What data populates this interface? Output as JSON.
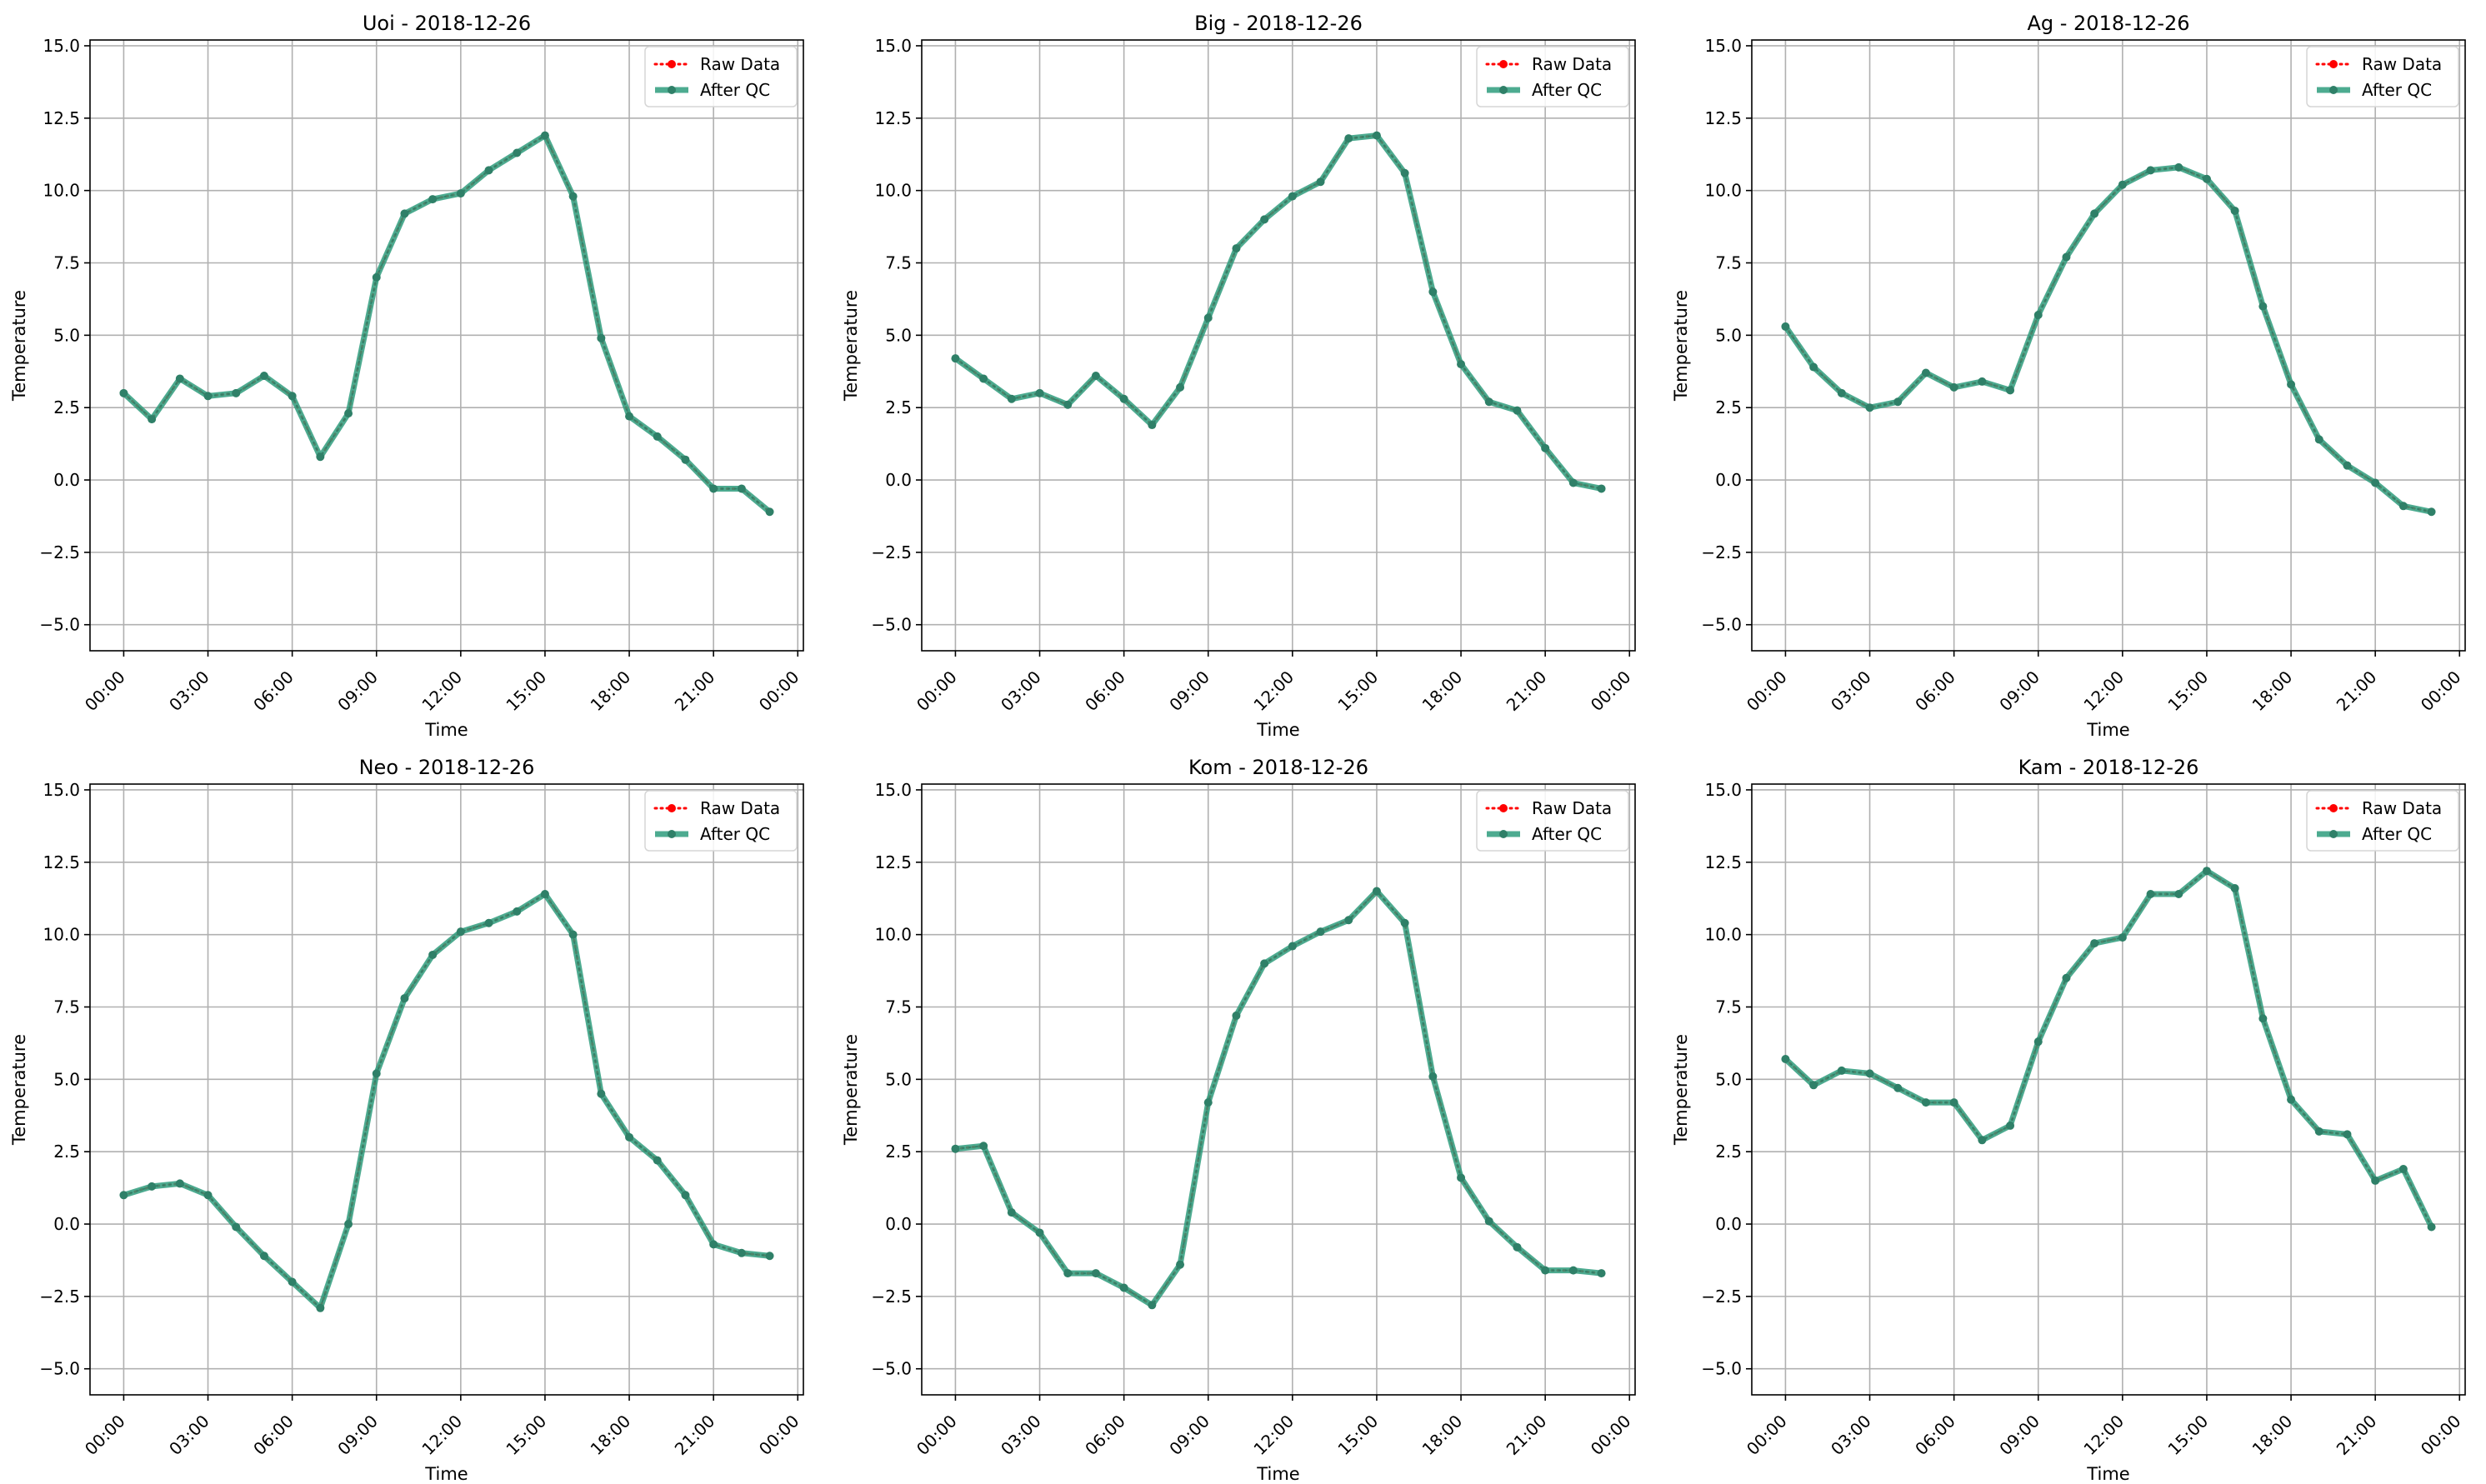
{
  "colors": {
    "raw": "#ff0000",
    "qc": "#2e9c7c",
    "qc_marker": "#2f8068",
    "grid": "#b0b0b0",
    "axes": "#000000"
  },
  "chart_data": [
    {
      "type": "line",
      "title": "Uoi - 2018-12-26",
      "xlabel": "Time",
      "ylabel": "Temperature",
      "x_ticks": [
        "00:00",
        "03:00",
        "06:00",
        "09:00",
        "12:00",
        "15:00",
        "18:00",
        "21:00",
        "00:00"
      ],
      "y_ticks": [
        "−5.0",
        "−2.5",
        "0.0",
        "2.5",
        "5.0",
        "7.5",
        "10.0",
        "12.5",
        "15.0"
      ],
      "ylim": [
        -5.9,
        15.2
      ],
      "xlim_hours": [
        -1.2,
        24.2
      ],
      "hours": [
        0,
        1,
        2,
        3,
        4,
        5,
        6,
        7,
        8,
        9,
        10,
        11,
        12,
        13,
        14,
        15,
        16,
        17,
        18,
        19,
        20,
        21,
        22,
        23
      ],
      "legend": [
        "Raw Data",
        "After QC"
      ],
      "legend_position": "upper right",
      "grid": true,
      "series": [
        {
          "name": "Raw Data",
          "values": [
            3.0,
            2.1,
            3.5,
            2.9,
            3.0,
            3.6,
            2.9,
            0.8,
            2.3,
            7.0,
            9.2,
            9.7,
            9.9,
            10.7,
            11.3,
            11.9,
            9.8,
            4.9,
            2.2,
            1.5,
            0.7,
            -0.3,
            -0.3,
            -1.1
          ]
        },
        {
          "name": "After QC",
          "values": [
            3.0,
            2.1,
            3.5,
            2.9,
            3.0,
            3.6,
            2.9,
            0.8,
            2.3,
            7.0,
            9.2,
            9.7,
            9.9,
            10.7,
            11.3,
            11.9,
            9.8,
            4.9,
            2.2,
            1.5,
            0.7,
            -0.3,
            -0.3,
            -1.1
          ]
        }
      ]
    },
    {
      "type": "line",
      "title": "Big - 2018-12-26",
      "xlabel": "Time",
      "ylabel": "Temperature",
      "x_ticks": [
        "00:00",
        "03:00",
        "06:00",
        "09:00",
        "12:00",
        "15:00",
        "18:00",
        "21:00",
        "00:00"
      ],
      "y_ticks": [
        "−5.0",
        "−2.5",
        "0.0",
        "2.5",
        "5.0",
        "7.5",
        "10.0",
        "12.5",
        "15.0"
      ],
      "ylim": [
        -5.9,
        15.2
      ],
      "xlim_hours": [
        -1.2,
        24.2
      ],
      "hours": [
        0,
        1,
        2,
        3,
        4,
        5,
        6,
        7,
        8,
        9,
        10,
        11,
        12,
        13,
        14,
        15,
        16,
        17,
        18,
        19,
        20,
        21,
        22,
        23
      ],
      "legend": [
        "Raw Data",
        "After QC"
      ],
      "legend_position": "upper right",
      "grid": true,
      "series": [
        {
          "name": "Raw Data",
          "values": [
            4.2,
            3.5,
            2.8,
            3.0,
            2.6,
            3.6,
            2.8,
            1.9,
            3.2,
            5.6,
            8.0,
            9.0,
            9.8,
            10.3,
            11.8,
            11.9,
            10.6,
            6.5,
            4.0,
            2.7,
            2.4,
            1.1,
            -0.1,
            -0.3
          ]
        },
        {
          "name": "After QC",
          "values": [
            4.2,
            3.5,
            2.8,
            3.0,
            2.6,
            3.6,
            2.8,
            1.9,
            3.2,
            5.6,
            8.0,
            9.0,
            9.8,
            10.3,
            11.8,
            11.9,
            10.6,
            6.5,
            4.0,
            2.7,
            2.4,
            1.1,
            -0.1,
            -0.3
          ]
        }
      ]
    },
    {
      "type": "line",
      "title": "Ag - 2018-12-26",
      "xlabel": "Time",
      "ylabel": "Temperature",
      "x_ticks": [
        "00:00",
        "03:00",
        "06:00",
        "09:00",
        "12:00",
        "15:00",
        "18:00",
        "21:00",
        "00:00"
      ],
      "y_ticks": [
        "−5.0",
        "−2.5",
        "0.0",
        "2.5",
        "5.0",
        "7.5",
        "10.0",
        "12.5",
        "15.0"
      ],
      "ylim": [
        -5.9,
        15.2
      ],
      "xlim_hours": [
        -1.2,
        24.2
      ],
      "hours": [
        0,
        1,
        2,
        3,
        4,
        5,
        6,
        7,
        8,
        9,
        10,
        11,
        12,
        13,
        14,
        15,
        16,
        17,
        18,
        19,
        20,
        21,
        22,
        23
      ],
      "legend": [
        "Raw Data",
        "After QC"
      ],
      "legend_position": "upper right",
      "grid": true,
      "series": [
        {
          "name": "Raw Data",
          "values": [
            5.3,
            3.9,
            3.0,
            2.5,
            2.7,
            3.7,
            3.2,
            3.4,
            3.1,
            5.7,
            7.7,
            9.2,
            10.2,
            10.7,
            10.8,
            10.4,
            9.3,
            6.0,
            3.3,
            1.4,
            0.5,
            -0.1,
            -0.9,
            -1.1
          ]
        },
        {
          "name": "After QC",
          "values": [
            5.3,
            3.9,
            3.0,
            2.5,
            2.7,
            3.7,
            3.2,
            3.4,
            3.1,
            5.7,
            7.7,
            9.2,
            10.2,
            10.7,
            10.8,
            10.4,
            9.3,
            6.0,
            3.3,
            1.4,
            0.5,
            -0.1,
            -0.9,
            -1.1
          ]
        }
      ]
    },
    {
      "type": "line",
      "title": "Neo - 2018-12-26",
      "xlabel": "Time",
      "ylabel": "Temperature",
      "x_ticks": [
        "00:00",
        "03:00",
        "06:00",
        "09:00",
        "12:00",
        "15:00",
        "18:00",
        "21:00",
        "00:00"
      ],
      "y_ticks": [
        "−5.0",
        "−2.5",
        "0.0",
        "2.5",
        "5.0",
        "7.5",
        "10.0",
        "12.5",
        "15.0"
      ],
      "ylim": [
        -5.9,
        15.2
      ],
      "xlim_hours": [
        -1.2,
        24.2
      ],
      "hours": [
        0,
        1,
        2,
        3,
        4,
        5,
        6,
        7,
        8,
        9,
        10,
        11,
        12,
        13,
        14,
        15,
        16,
        17,
        18,
        19,
        20,
        21,
        22,
        23
      ],
      "legend": [
        "Raw Data",
        "After QC"
      ],
      "legend_position": "upper right",
      "grid": true,
      "series": [
        {
          "name": "Raw Data",
          "values": [
            1.0,
            1.3,
            1.4,
            1.0,
            -0.1,
            -1.1,
            -2.0,
            -2.9,
            0.0,
            5.2,
            7.8,
            9.3,
            10.1,
            10.4,
            10.8,
            11.4,
            10.0,
            4.5,
            3.0,
            2.2,
            1.0,
            -0.7,
            -1.0,
            -1.1
          ]
        },
        {
          "name": "After QC",
          "values": [
            1.0,
            1.3,
            1.4,
            1.0,
            -0.1,
            -1.1,
            -2.0,
            -2.9,
            0.0,
            5.2,
            7.8,
            9.3,
            10.1,
            10.4,
            10.8,
            11.4,
            10.0,
            4.5,
            3.0,
            2.2,
            1.0,
            -0.7,
            -1.0,
            -1.1
          ]
        }
      ]
    },
    {
      "type": "line",
      "title": "Kom - 2018-12-26",
      "xlabel": "Time",
      "ylabel": "Temperature",
      "x_ticks": [
        "00:00",
        "03:00",
        "06:00",
        "09:00",
        "12:00",
        "15:00",
        "18:00",
        "21:00",
        "00:00"
      ],
      "y_ticks": [
        "−5.0",
        "−2.5",
        "0.0",
        "2.5",
        "5.0",
        "7.5",
        "10.0",
        "12.5",
        "15.0"
      ],
      "ylim": [
        -5.9,
        15.2
      ],
      "xlim_hours": [
        -1.2,
        24.2
      ],
      "hours": [
        0,
        1,
        2,
        3,
        4,
        5,
        6,
        7,
        8,
        9,
        10,
        11,
        12,
        13,
        14,
        15,
        16,
        17,
        18,
        19,
        20,
        21,
        22,
        23
      ],
      "legend": [
        "Raw Data",
        "After QC"
      ],
      "legend_position": "upper right",
      "grid": true,
      "series": [
        {
          "name": "Raw Data",
          "values": [
            2.6,
            2.7,
            0.4,
            -0.3,
            -1.7,
            -1.7,
            -2.2,
            -2.8,
            -1.4,
            4.2,
            7.2,
            9.0,
            9.6,
            10.1,
            10.5,
            11.5,
            10.4,
            5.1,
            1.6,
            0.1,
            -0.8,
            -1.6,
            -1.6,
            -1.7
          ]
        },
        {
          "name": "After QC",
          "values": [
            2.6,
            2.7,
            0.4,
            -0.3,
            -1.7,
            -1.7,
            -2.2,
            -2.8,
            -1.4,
            4.2,
            7.2,
            9.0,
            9.6,
            10.1,
            10.5,
            11.5,
            10.4,
            5.1,
            1.6,
            0.1,
            -0.8,
            -1.6,
            -1.6,
            -1.7
          ]
        }
      ]
    },
    {
      "type": "line",
      "title": "Kam - 2018-12-26",
      "xlabel": "Time",
      "ylabel": "Temperature",
      "x_ticks": [
        "00:00",
        "03:00",
        "06:00",
        "09:00",
        "12:00",
        "15:00",
        "18:00",
        "21:00",
        "00:00"
      ],
      "y_ticks": [
        "−5.0",
        "−2.5",
        "0.0",
        "2.5",
        "5.0",
        "7.5",
        "10.0",
        "12.5",
        "15.0"
      ],
      "ylim": [
        -5.9,
        15.2
      ],
      "xlim_hours": [
        -1.2,
        24.2
      ],
      "hours": [
        0,
        1,
        2,
        3,
        4,
        5,
        6,
        7,
        8,
        9,
        10,
        11,
        12,
        13,
        14,
        15,
        16,
        17,
        18,
        19,
        20,
        21,
        22,
        23
      ],
      "legend": [
        "Raw Data",
        "After QC"
      ],
      "legend_position": "upper right",
      "grid": true,
      "series": [
        {
          "name": "Raw Data",
          "values": [
            5.7,
            4.8,
            5.3,
            5.2,
            4.7,
            4.2,
            4.2,
            2.9,
            3.4,
            6.3,
            8.5,
            9.7,
            9.9,
            11.4,
            11.4,
            12.2,
            11.6,
            7.1,
            4.3,
            3.2,
            3.1,
            1.5,
            1.9,
            -0.1
          ]
        },
        {
          "name": "After QC",
          "values": [
            5.7,
            4.8,
            5.3,
            5.2,
            4.7,
            4.2,
            4.2,
            2.9,
            3.4,
            6.3,
            8.5,
            9.7,
            9.9,
            11.4,
            11.4,
            12.2,
            11.6,
            7.1,
            4.3,
            3.2,
            3.1,
            1.5,
            1.9,
            -0.1
          ]
        }
      ]
    }
  ]
}
